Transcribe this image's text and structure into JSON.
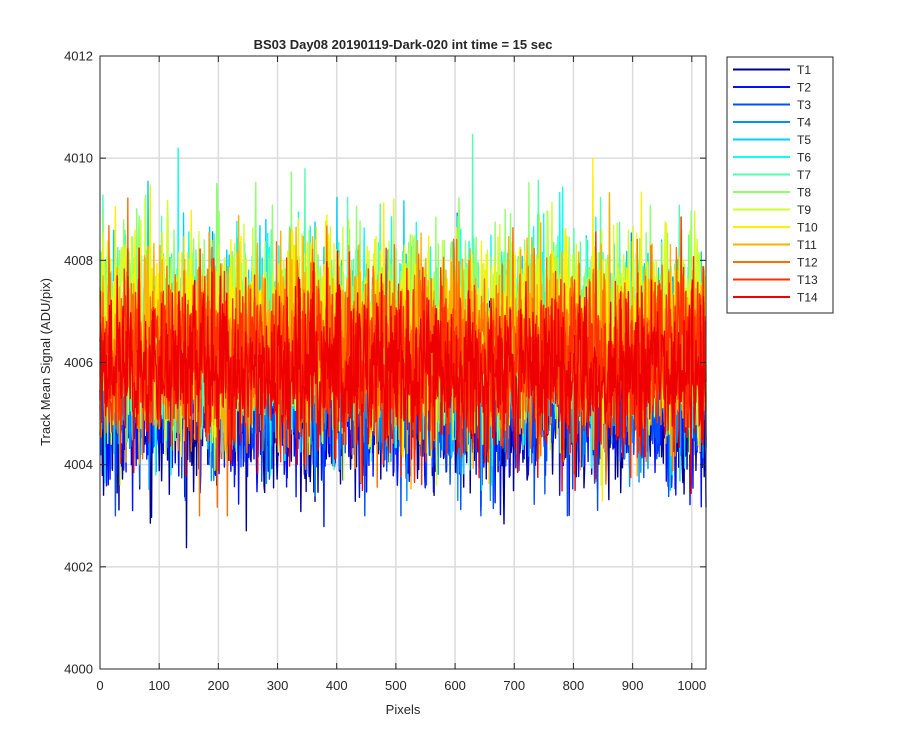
{
  "chart_data": {
    "type": "line",
    "title": "BS03 Day08 20190119-Dark-020 int time = 15 sec",
    "xlabel": "Pixels",
    "ylabel": "Track Mean Signal (ADU/pix)",
    "xlim": [
      0,
      1024
    ],
    "ylim": [
      4000,
      4012
    ],
    "xticks": [
      0,
      100,
      200,
      300,
      400,
      500,
      600,
      700,
      800,
      900,
      1000
    ],
    "yticks": [
      4000,
      4002,
      4004,
      4006,
      4008,
      4010,
      4012
    ],
    "grid": true,
    "legend_position": "outside-top-right",
    "n_points_per_series": 1024,
    "series": [
      {
        "name": "T1",
        "color": "#00008f",
        "mean": 4005.0,
        "std": 0.75,
        "min": 4002.2,
        "max": 4007.2
      },
      {
        "name": "T2",
        "color": "#0010ff",
        "mean": 4005.1,
        "std": 0.75,
        "min": 4002.4,
        "max": 4007.6
      },
      {
        "name": "T3",
        "color": "#0050ff",
        "mean": 4005.4,
        "std": 0.8,
        "min": 4003.0,
        "max": 4008.2
      },
      {
        "name": "T4",
        "color": "#0090ff",
        "mean": 4005.7,
        "std": 0.85,
        "min": 4003.3,
        "max": 4009.0
      },
      {
        "name": "T5",
        "color": "#00d0ff",
        "mean": 4006.3,
        "std": 0.95,
        "min": 4003.5,
        "max": 4011.3
      },
      {
        "name": "T6",
        "color": "#10ffef",
        "mean": 4006.5,
        "std": 0.95,
        "min": 4003.8,
        "max": 4010.6
      },
      {
        "name": "T7",
        "color": "#50ffaf",
        "mean": 4006.6,
        "std": 0.95,
        "min": 4003.9,
        "max": 4010.5
      },
      {
        "name": "T8",
        "color": "#90ff6f",
        "mean": 4006.7,
        "std": 0.95,
        "min": 4003.9,
        "max": 4010.8
      },
      {
        "name": "T9",
        "color": "#d0ff2f",
        "mean": 4006.6,
        "std": 0.95,
        "min": 4003.6,
        "max": 4010.3
      },
      {
        "name": "T10",
        "color": "#ffef00",
        "mean": 4006.5,
        "std": 0.95,
        "min": 4002.1,
        "max": 4010.0
      },
      {
        "name": "T11",
        "color": "#ffaf00",
        "mean": 4006.3,
        "std": 0.9,
        "min": 4003.0,
        "max": 4010.2
      },
      {
        "name": "T12",
        "color": "#ff6f00",
        "mean": 4006.2,
        "std": 0.9,
        "min": 4003.0,
        "max": 4010.9
      },
      {
        "name": "T13",
        "color": "#ff2f00",
        "mean": 4006.0,
        "std": 0.85,
        "min": 4002.6,
        "max": 4009.4
      },
      {
        "name": "T14",
        "color": "#ef0000",
        "mean": 4005.8,
        "std": 0.8,
        "min": 4001.6,
        "max": 4008.8
      }
    ]
  }
}
